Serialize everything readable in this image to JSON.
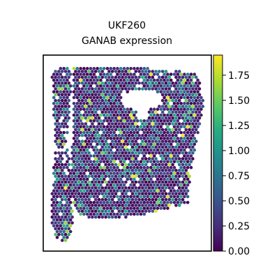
{
  "chart_data": {
    "type": "heatmap",
    "title_lines": [
      "UKF260",
      "GANAB expression"
    ],
    "xlabel": "",
    "ylabel": "",
    "grid": false,
    "colormap": "viridis",
    "colorbar": {
      "range": [
        0.0,
        1.95
      ],
      "ticks": [
        0.0,
        0.25,
        0.5,
        0.75,
        1.0,
        1.25,
        1.5,
        1.75
      ],
      "tick_labels": [
        "0.00",
        "0.25",
        "0.50",
        "0.75",
        "1.00",
        "1.25",
        "1.50",
        "1.75"
      ]
    },
    "value_distribution": {
      "max": 1.95,
      "bins": [
        {
          "range": [
            0.0,
            0.25
          ],
          "share": 0.55
        },
        {
          "range": [
            0.25,
            0.75
          ],
          "share": 0.3
        },
        {
          "range": [
            0.75,
            1.25
          ],
          "share": 0.1
        },
        {
          "range": [
            1.25,
            1.95
          ],
          "share": 0.05
        }
      ]
    }
  }
}
